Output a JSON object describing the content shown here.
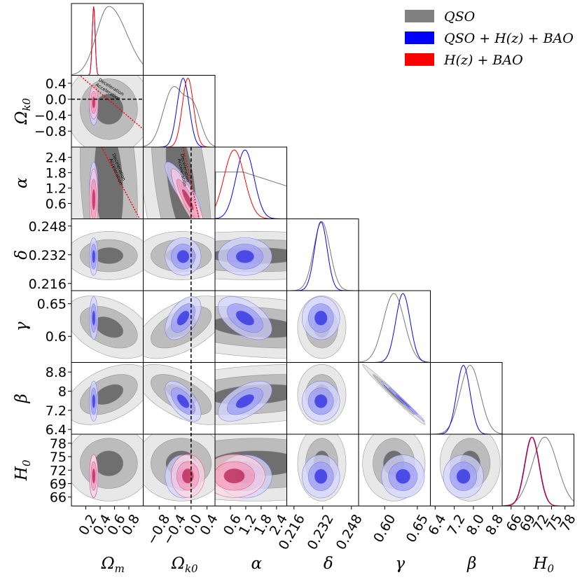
{
  "chart_data": {
    "type": "corner",
    "parameters": [
      {
        "key": "Om",
        "label": "Ωm",
        "ylabel": "",
        "range": [
          0.0,
          1.0
        ],
        "ticks": [
          0.2,
          0.4,
          0.6,
          0.8
        ],
        "tick_labels": [
          "0.2",
          "0.4",
          "0.6",
          "0.8"
        ]
      },
      {
        "key": "Ok0",
        "label": "Ωk0",
        "range": [
          -1.2,
          0.6
        ],
        "ticks": [
          -0.8,
          -0.4,
          0.0,
          0.4
        ],
        "tick_labels": [
          "−0.8",
          "−0.4",
          "0.0",
          "0.4"
        ]
      },
      {
        "key": "alpha",
        "label": "α",
        "range": [
          0.0,
          2.8
        ],
        "ticks": [
          0.6,
          1.2,
          1.8,
          2.4
        ],
        "tick_labels": [
          "0.6",
          "1.2",
          "1.8",
          "2.4"
        ]
      },
      {
        "key": "delta",
        "label": "δ",
        "range": [
          0.212,
          0.252
        ],
        "ticks": [
          0.216,
          0.232,
          0.248
        ],
        "tick_labels": [
          "0.216",
          "0.232",
          "0.248"
        ]
      },
      {
        "key": "gamma",
        "label": "γ",
        "range": [
          0.56,
          0.67
        ],
        "ticks": [
          0.6,
          0.65
        ],
        "tick_labels": [
          "0.60",
          "0.65"
        ],
        "y_tick_labels": [
          "0.6",
          "0.65"
        ]
      },
      {
        "key": "beta",
        "label": "β",
        "range": [
          6.2,
          9.2
        ],
        "ticks": [
          6.4,
          7.2,
          8.0,
          8.8
        ],
        "tick_labels": [
          "6.4",
          "7.2",
          "8.0",
          "8.8"
        ],
        "y_tick_labels": [
          "6.4",
          "7.2",
          "8",
          "8.8"
        ]
      },
      {
        "key": "H0",
        "label": "H0",
        "range": [
          64,
          80
        ],
        "ticks": [
          66,
          69,
          72,
          75,
          78
        ],
        "tick_labels": [
          "66",
          "69",
          "72",
          "75",
          "78"
        ]
      }
    ],
    "axis_labels": {
      "x": [
        "Ωm",
        "Ωk0",
        "α",
        "δ",
        "γ",
        "β",
        "H0"
      ],
      "y": [
        "Ωk0",
        "α",
        "δ",
        "γ",
        "β",
        "H0"
      ]
    },
    "legend": {
      "position": "top-right",
      "entries": [
        {
          "label": "QSO",
          "color": "#808080"
        },
        {
          "label": "QSO + H(z) + BAO",
          "color": "#0000ff"
        },
        {
          "label": "H(z) + BAO",
          "color": "#ff0000"
        }
      ]
    },
    "series": [
      {
        "name": "QSO",
        "color": "#555555",
        "mean": {
          "Om": 0.52,
          "Ok0": -0.25,
          "alpha": 0.0,
          "delta": 0.2315,
          "gamma": 0.614,
          "beta": 7.86,
          "H0": 73.5
        },
        "sigma": {
          "Om": 0.2,
          "Ok0": 0.38,
          "alpha": 1.3,
          "delta": 0.0045,
          "gamma": 0.016,
          "beta": 0.42,
          "H0": 2.8
        },
        "marginal_shape": {
          "alpha": "monotonic decreasing"
        }
      },
      {
        "name": "QSO + H(z) + BAO",
        "color": "#0000ff",
        "mean": {
          "Om": 0.31,
          "Ok0": -0.2,
          "alpha": 1.17,
          "delta": 0.231,
          "gamma": 0.628,
          "beta": 7.58,
          "H0": 70.6
        },
        "sigma": {
          "Om": 0.02,
          "Ok0": 0.15,
          "alpha": 0.35,
          "delta": 0.0035,
          "gamma": 0.011,
          "beta": 0.28,
          "H0": 1.6
        }
      },
      {
        "name": "H(z) + BAO",
        "color": "#ff0000",
        "mean": {
          "Om": 0.31,
          "Ok0": -0.08,
          "alpha": 0.75,
          "H0": 70.7
        },
        "sigma": {
          "Om": 0.02,
          "Ok0": 0.14,
          "alpha": 0.4,
          "H0": 1.6
        }
      }
    ],
    "reference_lines": {
      "Ok0_zero": 0.0,
      "deceleration_acceleration_boundary": true
    },
    "annotations": [
      "Deceleration",
      "Acceleration"
    ]
  }
}
